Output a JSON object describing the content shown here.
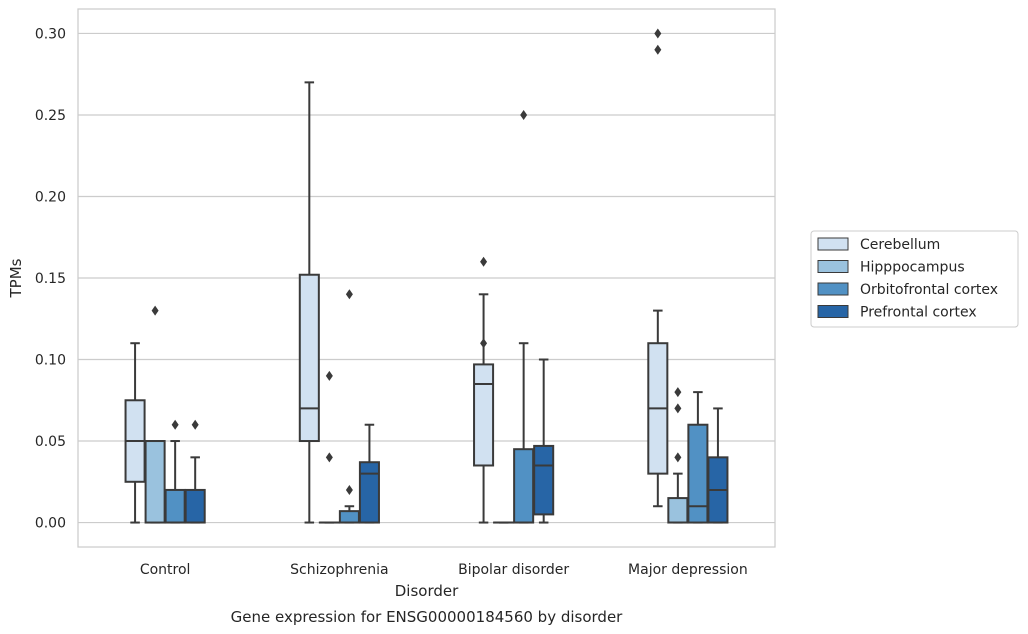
{
  "chart_data": {
    "type": "box",
    "caption": "Gene expression for ENSG00000184560 by disorder",
    "xlabel": "Disorder",
    "ylabel": "TPMs",
    "ylim": [
      -0.015,
      0.315
    ],
    "yticks": [
      0.0,
      0.05,
      0.1,
      0.15,
      0.2,
      0.25,
      0.3
    ],
    "ytick_labels": [
      "0.00",
      "0.05",
      "0.10",
      "0.15",
      "0.20",
      "0.25",
      "0.30"
    ],
    "grid": "horizontal",
    "legend_position": "right-center",
    "categories": [
      "Control",
      "Schizophrenia",
      "Bipolar disorder",
      "Major depression"
    ],
    "series": [
      {
        "name": "Cerebellum",
        "color": "#d1e1f1",
        "boxes": [
          {
            "whislo": 0.0,
            "q1": 0.025,
            "med": 0.05,
            "q3": 0.075,
            "whishi": 0.11,
            "fliers": []
          },
          {
            "whislo": 0.0,
            "q1": 0.05,
            "med": 0.07,
            "q3": 0.152,
            "whishi": 0.27,
            "fliers": []
          },
          {
            "whislo": 0.0,
            "q1": 0.035,
            "med": 0.085,
            "q3": 0.097,
            "whishi": 0.14,
            "fliers": [
              0.16,
              0.11
            ]
          },
          {
            "whislo": 0.01,
            "q1": 0.03,
            "med": 0.07,
            "q3": 0.11,
            "whishi": 0.13,
            "fliers": [
              0.3,
              0.29
            ]
          }
        ]
      },
      {
        "name": "Hipppocampus",
        "color": "#9ac2de",
        "boxes": [
          {
            "whislo": 0.0,
            "q1": 0.0,
            "med": 0.05,
            "q3": 0.05,
            "whishi": 0.05,
            "fliers": [
              0.13
            ]
          },
          {
            "whislo": 0.0,
            "q1": 0.0,
            "med": 0.0,
            "q3": 0.0,
            "whishi": 0.0,
            "fliers": [
              0.09,
              0.04
            ]
          },
          {
            "whislo": 0.0,
            "q1": 0.0,
            "med": 0.0,
            "q3": 0.0,
            "whishi": 0.0,
            "fliers": []
          },
          {
            "whislo": 0.0,
            "q1": 0.0,
            "med": 0.0,
            "q3": 0.015,
            "whishi": 0.03,
            "fliers": [
              0.08,
              0.07,
              0.04
            ]
          }
        ]
      },
      {
        "name": "Orbitofrontal cortex",
        "color": "#5191c4",
        "boxes": [
          {
            "whislo": 0.0,
            "q1": 0.0,
            "med": 0.0,
            "q3": 0.02,
            "whishi": 0.05,
            "fliers": [
              0.06
            ]
          },
          {
            "whislo": 0.0,
            "q1": 0.0,
            "med": 0.0,
            "q3": 0.007,
            "whishi": 0.01,
            "fliers": [
              0.14,
              0.02
            ]
          },
          {
            "whislo": 0.0,
            "q1": 0.0,
            "med": 0.0,
            "q3": 0.045,
            "whishi": 0.11,
            "fliers": [
              0.25
            ]
          },
          {
            "whislo": 0.0,
            "q1": 0.0,
            "med": 0.01,
            "q3": 0.06,
            "whishi": 0.08,
            "fliers": []
          }
        ]
      },
      {
        "name": "Prefrontal cortex",
        "color": "#2765a6",
        "boxes": [
          {
            "whislo": 0.0,
            "q1": 0.0,
            "med": 0.0,
            "q3": 0.02,
            "whishi": 0.04,
            "fliers": [
              0.06
            ]
          },
          {
            "whislo": 0.0,
            "q1": 0.0,
            "med": 0.03,
            "q3": 0.037,
            "whishi": 0.06,
            "fliers": []
          },
          {
            "whislo": 0.0,
            "q1": 0.005,
            "med": 0.035,
            "q3": 0.047,
            "whishi": 0.1,
            "fliers": []
          },
          {
            "whislo": 0.0,
            "q1": 0.0,
            "med": 0.02,
            "q3": 0.04,
            "whishi": 0.07,
            "fliers": []
          }
        ]
      }
    ]
  }
}
